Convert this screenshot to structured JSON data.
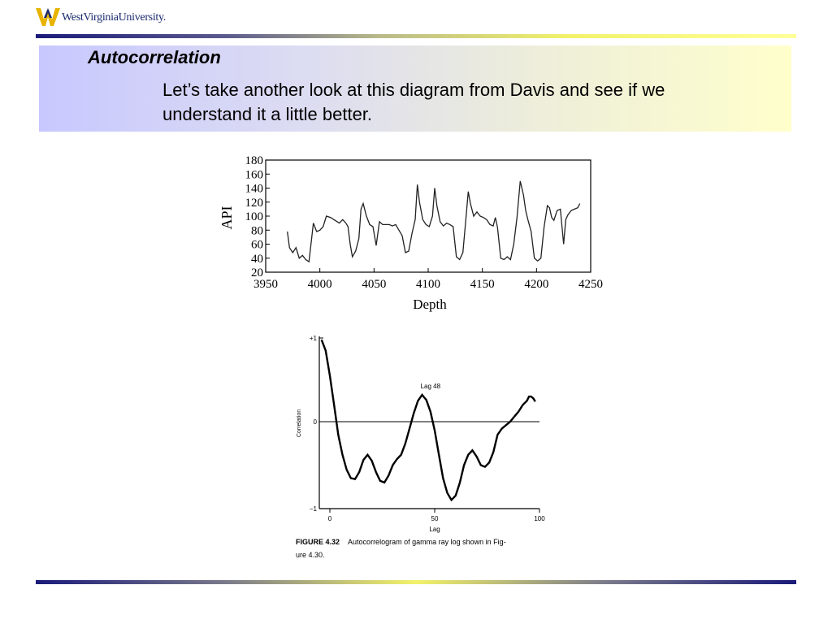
{
  "header": {
    "logo_text": "WestVirginiaUniversity."
  },
  "slide": {
    "title": "Autocorrelation",
    "body": "Let’s take another look at this diagram from Davis and see if we understand it a little better."
  },
  "caption": {
    "label": "FIGURE 4.32",
    "line1": "Autocorrelogram of gamma ray log shown in Fig-",
    "line2": "ure 4.30."
  },
  "chart_data": [
    {
      "type": "line",
      "title": "",
      "xlabel": "Depth",
      "ylabel": "API",
      "xlim": [
        3950,
        4250
      ],
      "ylim": [
        20,
        180
      ],
      "x_ticks": [
        "3950",
        "4000",
        "4050",
        "4100",
        "4150",
        "4200",
        "4250"
      ],
      "y_ticks": [
        "180",
        "160",
        "140",
        "120",
        "100",
        "80",
        "60",
        "40",
        "20"
      ],
      "grid": false,
      "series": [
        {
          "x": [
            3970,
            3972,
            3975,
            3978,
            3981,
            3984,
            3987,
            3990,
            3994,
            3997,
            4000,
            4003,
            4006,
            4010,
            4014,
            4018,
            4021,
            4024,
            4026,
            4028,
            4030,
            4033,
            4036,
            4038,
            4040,
            4043,
            4046,
            4049,
            4052,
            4055,
            4058,
            4061,
            4064,
            4067,
            4070,
            4073,
            4076,
            4079,
            4082,
            4085,
            4088,
            4090,
            4092,
            4095,
            4098,
            4101,
            4104,
            4106,
            4108,
            4111,
            4114,
            4117,
            4120,
            4123,
            4126,
            4129,
            4132,
            4135,
            4137,
            4139,
            4142,
            4145,
            4148,
            4151,
            4154,
            4157,
            4160,
            4162,
            4164,
            4167,
            4170,
            4173,
            4176,
            4179,
            4182,
            4185,
            4188,
            4190,
            4192,
            4195,
            4198,
            4201,
            4204,
            4207,
            4210,
            4212,
            4214,
            4216,
            4219,
            4222,
            4225,
            4227,
            4229,
            4232,
            4235,
            4238,
            4240
          ],
          "y": [
            78,
            55,
            48,
            55,
            40,
            44,
            38,
            35,
            90,
            78,
            80,
            85,
            100,
            98,
            94,
            90,
            95,
            90,
            85,
            60,
            42,
            50,
            68,
            110,
            118,
            100,
            88,
            85,
            58,
            92,
            88,
            88,
            88,
            86,
            88,
            80,
            72,
            48,
            50,
            75,
            95,
            145,
            120,
            95,
            88,
            85,
            100,
            140,
            115,
            92,
            86,
            90,
            88,
            85,
            42,
            38,
            48,
            100,
            135,
            118,
            100,
            106,
            100,
            98,
            95,
            88,
            86,
            98,
            84,
            40,
            38,
            42,
            38,
            60,
            98,
            150,
            130,
            108,
            95,
            78,
            40,
            36,
            40,
            85,
            115,
            112,
            98,
            94,
            108,
            110,
            60,
            95,
            102,
            108,
            110,
            112,
            118
          ]
        }
      ]
    },
    {
      "type": "line",
      "title": "",
      "xlabel": "Lag",
      "ylabel": "Correlation",
      "xlim": [
        -10,
        100
      ],
      "ylim": [
        -1,
        1
      ],
      "x_ticks": [
        "0",
        "50",
        "100"
      ],
      "y_ticks": [
        "+1",
        "0",
        "−1"
      ],
      "grid": false,
      "annotations": [
        {
          "text": "Lag 48",
          "x": 48,
          "y": 0.32
        }
      ],
      "series": [
        {
          "x": [
            -4,
            -2,
            0,
            2,
            4,
            6,
            8,
            10,
            12,
            14,
            16,
            18,
            20,
            22,
            24,
            26,
            28,
            30,
            32,
            34,
            36,
            38,
            40,
            42,
            44,
            46,
            48,
            50,
            52,
            54,
            56,
            58,
            60,
            62,
            64,
            66,
            68,
            70,
            72,
            74,
            76,
            78,
            80,
            82,
            84,
            86,
            88,
            90,
            92,
            94,
            95,
            96,
            97,
            98
          ],
          "y": [
            0.98,
            0.85,
            0.55,
            0.2,
            -0.15,
            -0.38,
            -0.55,
            -0.65,
            -0.66,
            -0.58,
            -0.44,
            -0.38,
            -0.45,
            -0.58,
            -0.68,
            -0.7,
            -0.62,
            -0.5,
            -0.43,
            -0.38,
            -0.25,
            -0.08,
            0.1,
            0.25,
            0.32,
            0.26,
            0.12,
            -0.1,
            -0.38,
            -0.65,
            -0.82,
            -0.9,
            -0.85,
            -0.7,
            -0.5,
            -0.38,
            -0.33,
            -0.4,
            -0.5,
            -0.52,
            -0.47,
            -0.35,
            -0.15,
            -0.08,
            -0.04,
            0.0,
            0.06,
            0.12,
            0.2,
            0.25,
            0.3,
            0.3,
            0.28,
            0.24
          ]
        }
      ]
    }
  ]
}
